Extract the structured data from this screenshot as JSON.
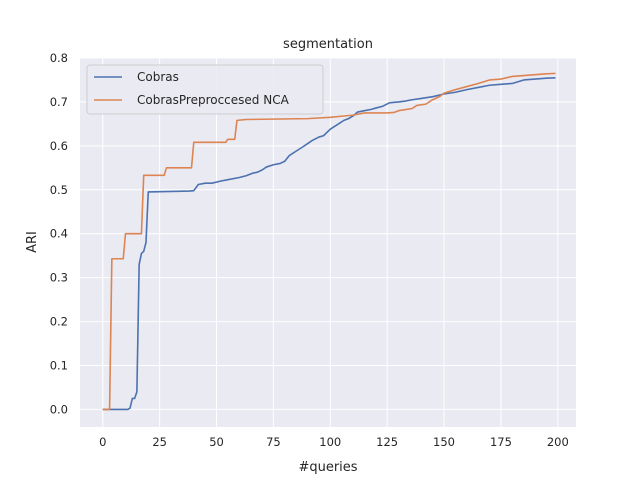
{
  "chart_data": {
    "type": "line",
    "title": "segmentation",
    "xlabel": "#queries",
    "ylabel": "ARI",
    "xlim": [
      -10,
      208
    ],
    "ylim": [
      -0.04,
      0.8
    ],
    "xticks": [
      0,
      25,
      50,
      75,
      100,
      125,
      150,
      175,
      200
    ],
    "yticks": [
      0.0,
      0.1,
      0.2,
      0.3,
      0.4,
      0.5,
      0.6,
      0.7,
      0.8
    ],
    "ytick_labels": [
      "0.0",
      "0.1",
      "0.2",
      "0.3",
      "0.4",
      "0.5",
      "0.6",
      "0.7",
      "0.8"
    ],
    "grid": true,
    "legend_position": "top-left",
    "series": [
      {
        "name": "Cobras",
        "color": "#4c72b0",
        "points": [
          [
            0,
            0.0
          ],
          [
            11,
            0.0
          ],
          [
            12,
            0.003
          ],
          [
            13,
            0.025
          ],
          [
            14,
            0.025
          ],
          [
            15,
            0.04
          ],
          [
            16,
            0.33
          ],
          [
            17,
            0.355
          ],
          [
            18,
            0.36
          ],
          [
            19,
            0.38
          ],
          [
            20,
            0.495
          ],
          [
            38,
            0.497
          ],
          [
            40,
            0.498
          ],
          [
            42,
            0.512
          ],
          [
            45,
            0.515
          ],
          [
            48,
            0.515
          ],
          [
            52,
            0.52
          ],
          [
            55,
            0.523
          ],
          [
            60,
            0.528
          ],
          [
            63,
            0.532
          ],
          [
            66,
            0.538
          ],
          [
            68,
            0.54
          ],
          [
            70,
            0.545
          ],
          [
            72,
            0.552
          ],
          [
            75,
            0.557
          ],
          [
            78,
            0.56
          ],
          [
            80,
            0.565
          ],
          [
            82,
            0.578
          ],
          [
            85,
            0.588
          ],
          [
            88,
            0.598
          ],
          [
            90,
            0.605
          ],
          [
            92,
            0.612
          ],
          [
            95,
            0.62
          ],
          [
            97,
            0.623
          ],
          [
            100,
            0.638
          ],
          [
            103,
            0.648
          ],
          [
            106,
            0.658
          ],
          [
            108,
            0.662
          ],
          [
            110,
            0.668
          ],
          [
            112,
            0.677
          ],
          [
            115,
            0.68
          ],
          [
            118,
            0.683
          ],
          [
            120,
            0.686
          ],
          [
            123,
            0.69
          ],
          [
            126,
            0.698
          ],
          [
            130,
            0.7
          ],
          [
            133,
            0.702
          ],
          [
            136,
            0.705
          ],
          [
            140,
            0.708
          ],
          [
            145,
            0.712
          ],
          [
            150,
            0.718
          ],
          [
            155,
            0.722
          ],
          [
            160,
            0.728
          ],
          [
            165,
            0.733
          ],
          [
            170,
            0.738
          ],
          [
            175,
            0.74
          ],
          [
            180,
            0.742
          ],
          [
            185,
            0.75
          ],
          [
            190,
            0.752
          ],
          [
            195,
            0.754
          ],
          [
            199,
            0.755
          ]
        ]
      },
      {
        "name": "CobrasPreproccesed NCA",
        "color": "#dd8452",
        "points": [
          [
            0,
            0.0
          ],
          [
            3,
            0.0
          ],
          [
            4,
            0.343
          ],
          [
            9,
            0.343
          ],
          [
            10,
            0.4
          ],
          [
            17,
            0.4
          ],
          [
            18,
            0.533
          ],
          [
            27,
            0.533
          ],
          [
            28,
            0.55
          ],
          [
            39,
            0.55
          ],
          [
            40,
            0.608
          ],
          [
            54,
            0.608
          ],
          [
            55,
            0.615
          ],
          [
            58,
            0.615
          ],
          [
            59,
            0.658
          ],
          [
            63,
            0.66
          ],
          [
            90,
            0.662
          ],
          [
            100,
            0.665
          ],
          [
            106,
            0.668
          ],
          [
            110,
            0.67
          ],
          [
            112,
            0.672
          ],
          [
            115,
            0.675
          ],
          [
            125,
            0.675
          ],
          [
            128,
            0.676
          ],
          [
            130,
            0.68
          ],
          [
            136,
            0.685
          ],
          [
            138,
            0.692
          ],
          [
            142,
            0.695
          ],
          [
            145,
            0.705
          ],
          [
            148,
            0.712
          ],
          [
            150,
            0.72
          ],
          [
            155,
            0.728
          ],
          [
            160,
            0.735
          ],
          [
            165,
            0.742
          ],
          [
            170,
            0.75
          ],
          [
            175,
            0.752
          ],
          [
            180,
            0.758
          ],
          [
            185,
            0.76
          ],
          [
            190,
            0.762
          ],
          [
            195,
            0.764
          ],
          [
            199,
            0.765
          ]
        ]
      }
    ]
  }
}
